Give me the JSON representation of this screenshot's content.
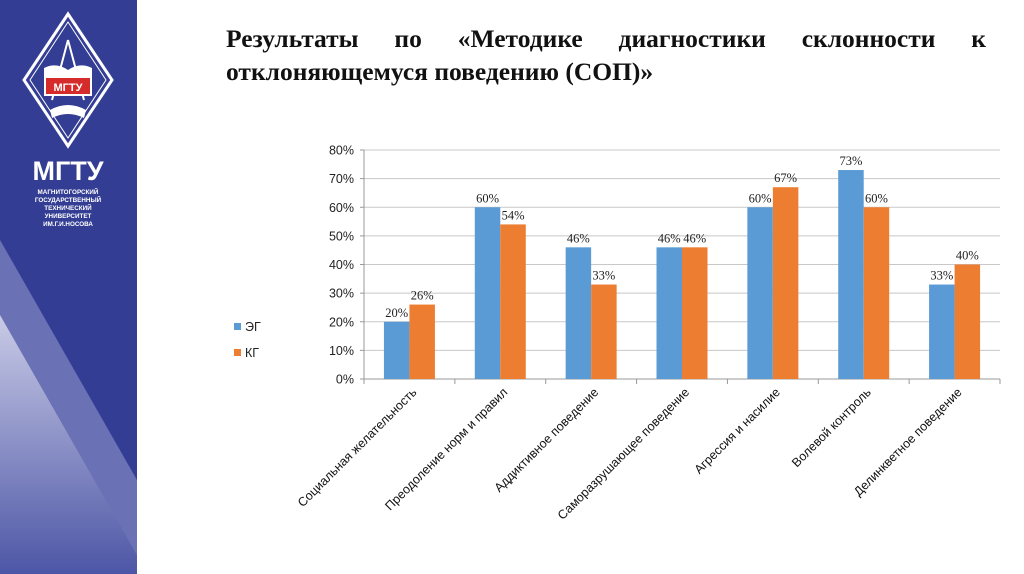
{
  "logo": {
    "emblem_text": "МГТУ",
    "name": "МГТУ",
    "full_name": [
      "МАГНИТОГОРСКИЙ",
      "ГОСУДАРСТВЕННЫЙ",
      "ТЕХНИЧЕСКИЙ",
      "УНИВЕРСИТЕТ",
      "ИМ.Г.И.НОСОВА"
    ]
  },
  "colors": {
    "sidebar": "#333d93",
    "eg": "#5b9bd5",
    "kg": "#ed7d31",
    "grid": "#c8c8c8"
  },
  "title": "Результаты по «Методике диагностики склонности к отклоняющемуся поведению (СОП)»",
  "chart_data": {
    "type": "bar",
    "title": "",
    "categories": [
      "Социальная желательность",
      "Преодоление норм и правил",
      "Аддиктивное поведение",
      "Саморазрушающее поведение",
      "Агрессия и насилие",
      "Волевой контроль",
      "Делинкветное поведение"
    ],
    "series": [
      {
        "name": "ЭГ",
        "values": [
          20,
          60,
          46,
          46,
          60,
          73,
          33
        ]
      },
      {
        "name": "КГ",
        "values": [
          26,
          54,
          33,
          46,
          67,
          60,
          40
        ]
      }
    ],
    "ylim": [
      0,
      80
    ],
    "yticks": [
      "0%",
      "10%",
      "20%",
      "30%",
      "40%",
      "50%",
      "60%",
      "70%",
      "80%"
    ],
    "value_suffix": "%",
    "grid": true,
    "legend": "left"
  }
}
